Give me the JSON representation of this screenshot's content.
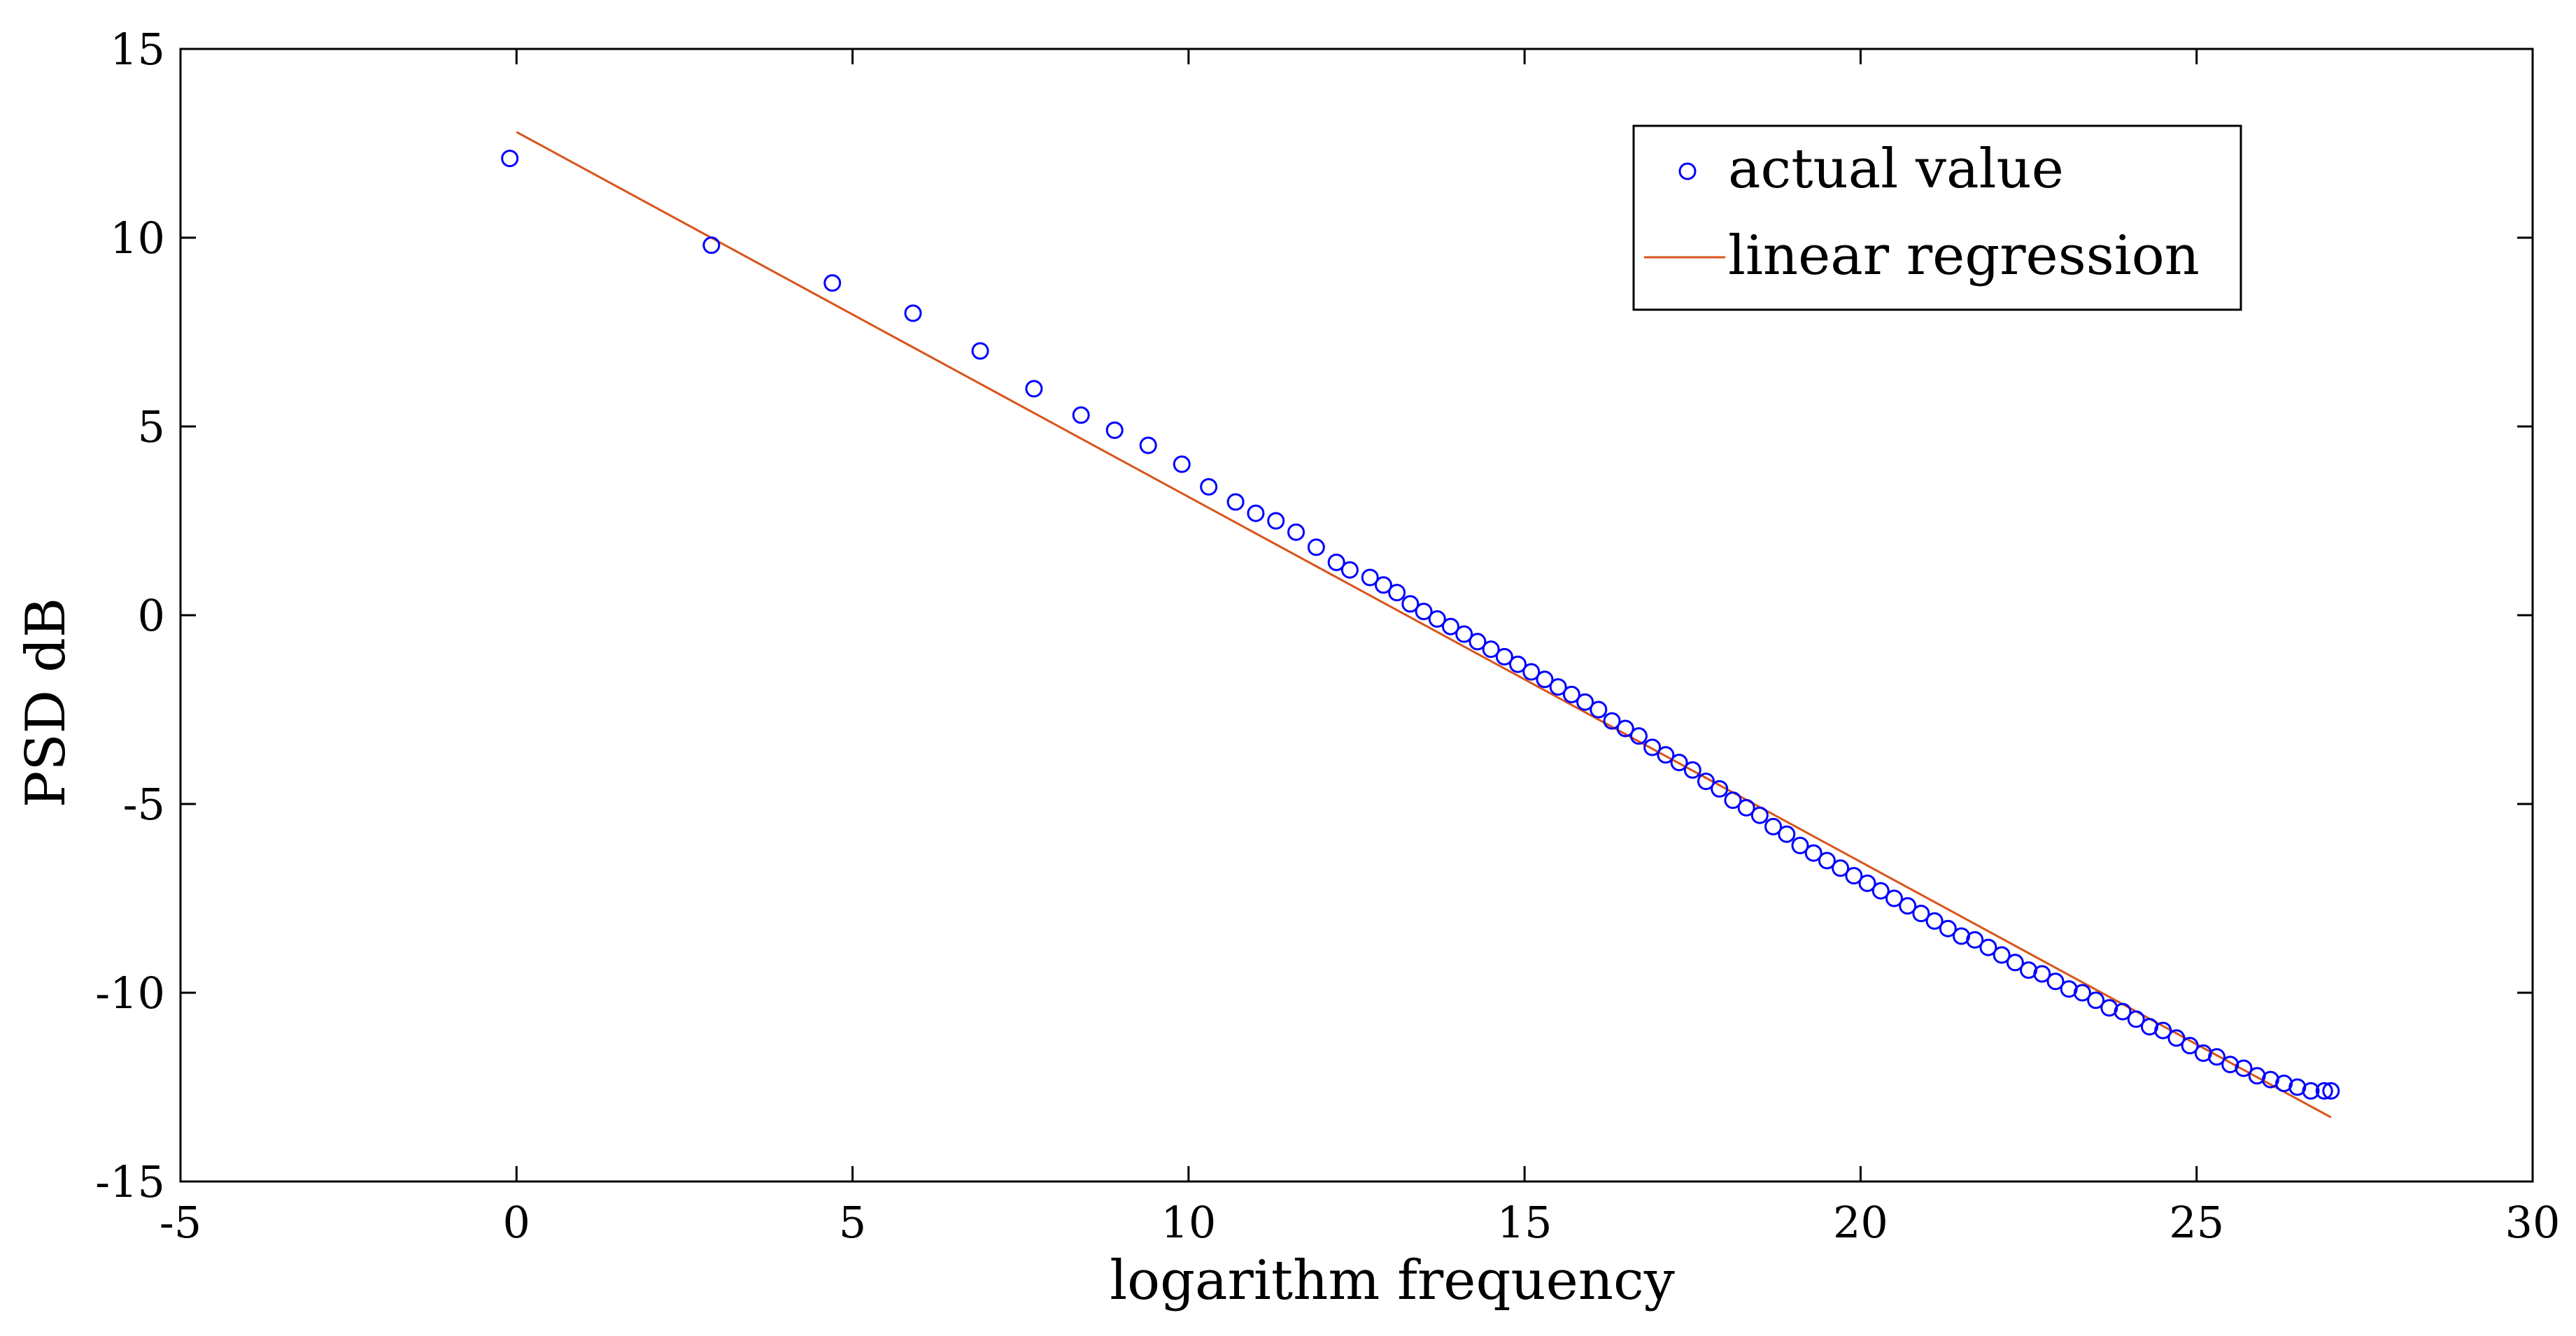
{
  "chart_data": {
    "type": "scatter",
    "title": "",
    "xlabel": "logarithm frequency",
    "ylabel": "PSD dB",
    "xlim": [
      -5,
      30
    ],
    "ylim": [
      -15,
      15
    ],
    "xticks": [
      -5,
      0,
      5,
      10,
      15,
      20,
      25,
      30
    ],
    "yticks": [
      15,
      10,
      5,
      0,
      -5,
      -10,
      -15
    ],
    "grid": false,
    "legend_position": "top-right",
    "series": [
      {
        "name": "actual value",
        "kind": "scatter",
        "marker": "open-circle",
        "color": "#0000ff",
        "points": [
          [
            -0.1,
            12.1
          ],
          [
            2.9,
            9.8
          ],
          [
            4.7,
            8.8
          ],
          [
            5.9,
            8.0
          ],
          [
            6.9,
            7.0
          ],
          [
            7.7,
            6.0
          ],
          [
            8.4,
            5.3
          ],
          [
            8.9,
            4.9
          ],
          [
            9.4,
            4.5
          ],
          [
            9.9,
            4.0
          ],
          [
            10.3,
            3.4
          ],
          [
            10.7,
            3.0
          ],
          [
            11.0,
            2.7
          ],
          [
            11.3,
            2.5
          ],
          [
            11.6,
            2.2
          ],
          [
            11.9,
            1.8
          ],
          [
            12.2,
            1.4
          ],
          [
            12.4,
            1.2
          ],
          [
            12.7,
            1.0
          ],
          [
            12.9,
            0.8
          ],
          [
            13.1,
            0.6
          ],
          [
            13.3,
            0.3
          ],
          [
            13.5,
            0.1
          ],
          [
            13.7,
            -0.1
          ],
          [
            13.9,
            -0.3
          ],
          [
            14.1,
            -0.5
          ],
          [
            14.3,
            -0.7
          ],
          [
            14.5,
            -0.9
          ],
          [
            14.7,
            -1.1
          ],
          [
            14.9,
            -1.3
          ],
          [
            15.1,
            -1.5
          ],
          [
            15.3,
            -1.7
          ],
          [
            15.5,
            -1.9
          ],
          [
            15.7,
            -2.1
          ],
          [
            15.9,
            -2.3
          ],
          [
            16.1,
            -2.5
          ],
          [
            16.3,
            -2.8
          ],
          [
            16.5,
            -3.0
          ],
          [
            16.7,
            -3.2
          ],
          [
            16.9,
            -3.5
          ],
          [
            17.1,
            -3.7
          ],
          [
            17.3,
            -3.9
          ],
          [
            17.5,
            -4.1
          ],
          [
            17.7,
            -4.4
          ],
          [
            17.9,
            -4.6
          ],
          [
            18.1,
            -4.9
          ],
          [
            18.3,
            -5.1
          ],
          [
            18.5,
            -5.3
          ],
          [
            18.7,
            -5.6
          ],
          [
            18.9,
            -5.8
          ],
          [
            19.1,
            -6.1
          ],
          [
            19.3,
            -6.3
          ],
          [
            19.5,
            -6.5
          ],
          [
            19.7,
            -6.7
          ],
          [
            19.9,
            -6.9
          ],
          [
            20.1,
            -7.1
          ],
          [
            20.3,
            -7.3
          ],
          [
            20.5,
            -7.5
          ],
          [
            20.7,
            -7.7
          ],
          [
            20.9,
            -7.9
          ],
          [
            21.1,
            -8.1
          ],
          [
            21.3,
            -8.3
          ],
          [
            21.5,
            -8.5
          ],
          [
            21.7,
            -8.6
          ],
          [
            21.9,
            -8.8
          ],
          [
            22.1,
            -9.0
          ],
          [
            22.3,
            -9.2
          ],
          [
            22.5,
            -9.4
          ],
          [
            22.7,
            -9.5
          ],
          [
            22.9,
            -9.7
          ],
          [
            23.1,
            -9.9
          ],
          [
            23.3,
            -10.0
          ],
          [
            23.5,
            -10.2
          ],
          [
            23.7,
            -10.4
          ],
          [
            23.9,
            -10.5
          ],
          [
            24.1,
            -10.7
          ],
          [
            24.3,
            -10.9
          ],
          [
            24.5,
            -11.0
          ],
          [
            24.7,
            -11.2
          ],
          [
            24.9,
            -11.4
          ],
          [
            25.1,
            -11.6
          ],
          [
            25.3,
            -11.7
          ],
          [
            25.5,
            -11.9
          ],
          [
            25.7,
            -12.0
          ],
          [
            25.9,
            -12.2
          ],
          [
            26.1,
            -12.3
          ],
          [
            26.3,
            -12.4
          ],
          [
            26.5,
            -12.5
          ],
          [
            26.7,
            -12.6
          ],
          [
            26.9,
            -12.6
          ],
          [
            27.0,
            -12.6
          ]
        ]
      },
      {
        "name": "linear regression",
        "kind": "line",
        "color": "#d95319",
        "x": [
          0,
          27
        ],
        "y": [
          12.8,
          -13.3
        ]
      }
    ]
  }
}
